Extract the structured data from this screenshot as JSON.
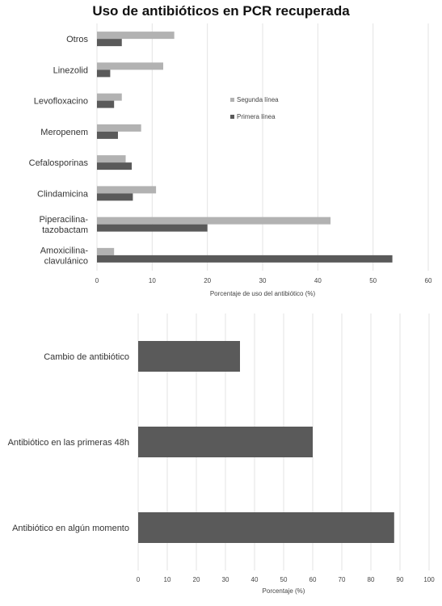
{
  "title": "Uso de antibióticos en PCR recuperada",
  "chart_data": [
    {
      "type": "bar",
      "orientation": "horizontal",
      "title": "Uso de antibióticos en PCR recuperada",
      "categories": [
        [
          "Otros"
        ],
        [
          "Linezolid"
        ],
        [
          "Levofloxacino"
        ],
        [
          "Meropenem"
        ],
        [
          "Cefalosporinas"
        ],
        [
          "Clindamicina"
        ],
        [
          "Piperacilina-",
          "tazobactam"
        ],
        [
          "Amoxicilina-",
          "clavulánico"
        ]
      ],
      "series": [
        {
          "name": "Segunda línea",
          "color": "#b2b2b2",
          "values": [
            14,
            12,
            4.5,
            8,
            5.2,
            10.7,
            42.3,
            3.1
          ]
        },
        {
          "name": "Primera línea",
          "color": "#5a5a5a",
          "values": [
            4.5,
            2.4,
            3.1,
            3.8,
            6.3,
            6.5,
            20,
            53.5
          ]
        }
      ],
      "xlabel": "Porcentaje de uso del antibiótico (%)",
      "xlim": [
        0,
        60
      ],
      "xticks": [
        0,
        10,
        20,
        30,
        40,
        50,
        60
      ],
      "grid": true,
      "legend": "center"
    },
    {
      "type": "bar",
      "orientation": "horizontal",
      "categories": [
        "Cambio de antibiótico",
        "Antibiótico en las primeras 48h",
        "Antibiótico en algún momento"
      ],
      "values": [
        35,
        60,
        88
      ],
      "color": "#5a5a5a",
      "xlabel": "Porcentaje (%)",
      "xlim": [
        0,
        100
      ],
      "xticks": [
        0,
        10,
        20,
        30,
        40,
        50,
        60,
        70,
        80,
        90,
        100
      ],
      "grid": true
    }
  ]
}
